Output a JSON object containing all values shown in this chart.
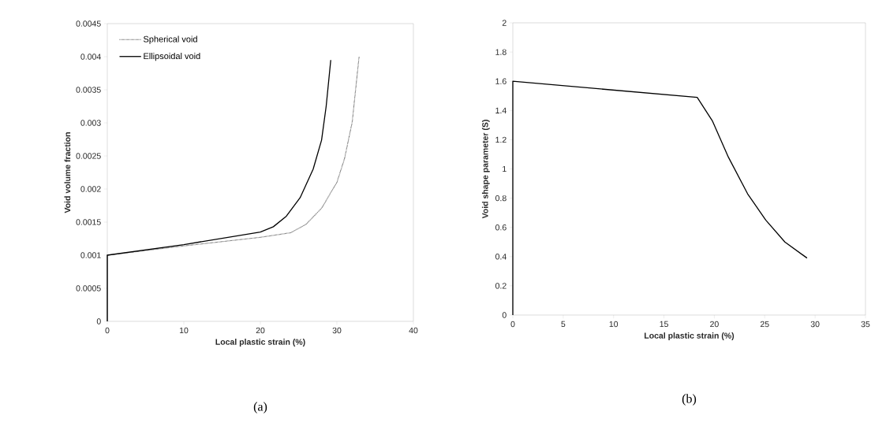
{
  "chart_data": [
    {
      "type": "line",
      "xlabel": "Local plastic strain (%)",
      "ylabel": "Void volume fraction",
      "xlim": [
        0,
        40
      ],
      "ylim": [
        0,
        0.0045
      ],
      "xticks": [
        0,
        10,
        20,
        30,
        40
      ],
      "yticks": [
        0,
        0.0005,
        0.001,
        0.0015,
        0.002,
        0.0025,
        0.003,
        0.0035,
        0.004,
        0.0045
      ],
      "legend": "top left",
      "grid": false,
      "annotations": [
        "(a)"
      ],
      "series": [
        {
          "name": "Spherical void",
          "color": "#404040",
          "line_style": "dotted",
          "x": [
            0,
            0,
            10,
            20,
            24,
            26,
            28,
            30,
            31,
            32,
            32.9
          ],
          "values": [
            0,
            0.001,
            0.00114,
            0.00127,
            0.00134,
            0.00147,
            0.00171,
            0.0021,
            0.00246,
            0.00301,
            0.004
          ]
        },
        {
          "name": "Ellipsoidal void",
          "color": "#000000",
          "line_style": "solid",
          "x": [
            0,
            0,
            10,
            20,
            21.7,
            23.4,
            25.2,
            26.9,
            28,
            28.6,
            29.2
          ],
          "values": [
            0,
            0.001,
            0.00116,
            0.00135,
            0.00143,
            0.00159,
            0.00187,
            0.0023,
            0.00274,
            0.00325,
            0.00395
          ]
        }
      ]
    },
    {
      "type": "line",
      "xlabel": "Local plastic strain (%)",
      "ylabel": "Void shape parameter (S)",
      "xlim": [
        0,
        35
      ],
      "ylim": [
        0,
        2
      ],
      "xticks": [
        0,
        5,
        10,
        15,
        20,
        25,
        30,
        35
      ],
      "yticks": [
        0,
        0.2,
        0.4,
        0.6,
        0.8,
        1,
        1.2,
        1.4,
        1.6,
        1.8,
        2
      ],
      "grid": false,
      "annotations": [
        "(b)"
      ],
      "series": [
        {
          "color": "#000000",
          "line_style": "solid",
          "x": [
            0,
            0,
            18.3,
            19.8,
            21.4,
            23.3,
            25.1,
            27,
            29.2
          ],
          "values": [
            0,
            1.6,
            1.49,
            1.33,
            1.08,
            0.83,
            0.65,
            0.5,
            0.39
          ]
        }
      ]
    }
  ]
}
